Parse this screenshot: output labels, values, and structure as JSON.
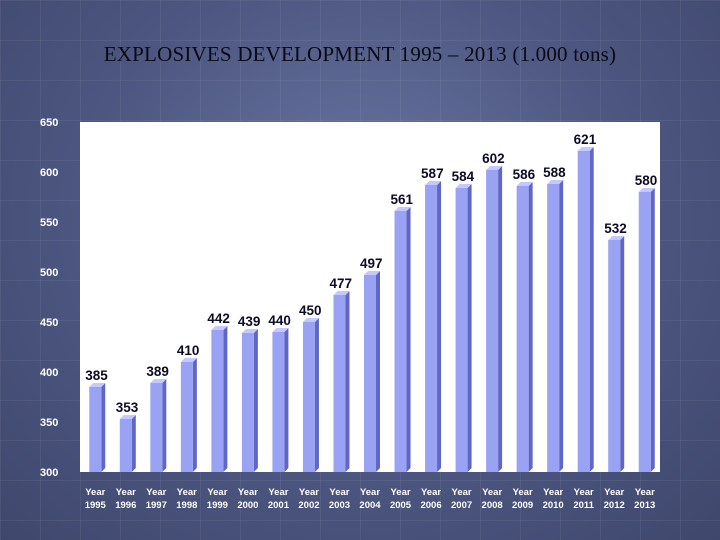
{
  "title": "EXPLOSIVES DEVELOPMENT 1995 – 2013 (1.000 tons)",
  "colors": {
    "bar_face": "#9aa2f4",
    "bar_side": "#5f66c4",
    "bar_top": "#c3c8ff",
    "plot_bg": "#ffffff",
    "data_label": "#0b0b24",
    "axis_text": "#ffffff"
  },
  "chart_data": {
    "type": "bar",
    "title": "EXPLOSIVES DEVELOPMENT 1995 – 2013 (1.000 tons)",
    "xlabel": "",
    "ylabel": "",
    "categories": [
      [
        "Year",
        "1995"
      ],
      [
        "Year",
        "1996"
      ],
      [
        "Year",
        "1997"
      ],
      [
        "Year",
        "1998"
      ],
      [
        "Year",
        "1999"
      ],
      [
        "Year",
        "2000"
      ],
      [
        "Year",
        "2001"
      ],
      [
        "Year",
        "2002"
      ],
      [
        "Year",
        "2003"
      ],
      [
        "Year",
        "2004"
      ],
      [
        "Year",
        "2005"
      ],
      [
        "Year",
        "2006"
      ],
      [
        "Year",
        "2007"
      ],
      [
        "Year",
        "2008"
      ],
      [
        "Year",
        "2009"
      ],
      [
        "Year",
        "2010"
      ],
      [
        "Year",
        "2011"
      ],
      [
        "Year",
        "2012"
      ],
      [
        "Year",
        "2013"
      ]
    ],
    "values": [
      385,
      353,
      389,
      410,
      442,
      439,
      440,
      450,
      477,
      497,
      561,
      587,
      584,
      602,
      586,
      588,
      621,
      532,
      580
    ],
    "ylim": [
      300,
      650
    ],
    "yticks": [
      300,
      350,
      400,
      450,
      500,
      550,
      600,
      650
    ],
    "grid": false,
    "legend": "none"
  }
}
